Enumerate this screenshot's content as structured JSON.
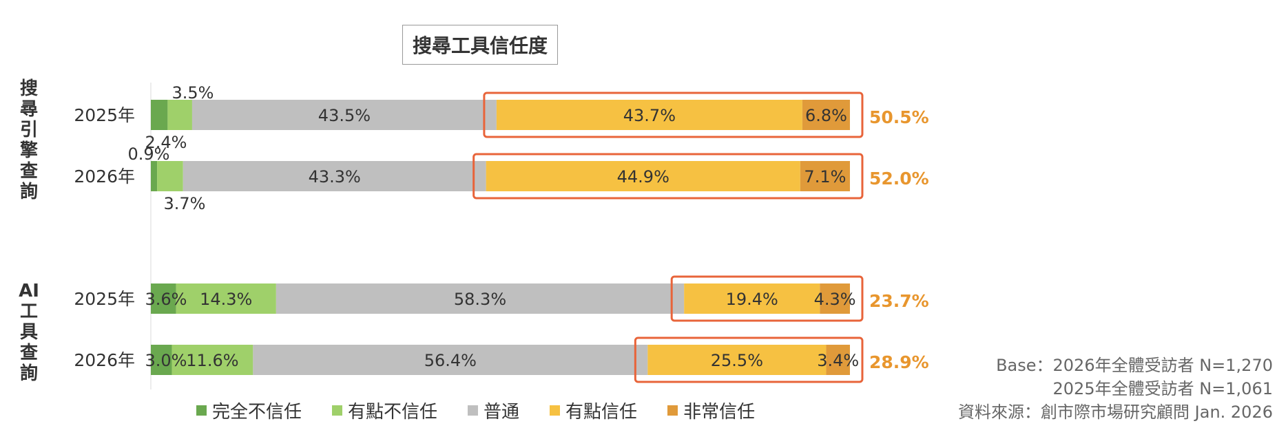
{
  "chart_data": {
    "type": "bar",
    "orientation": "horizontal",
    "stacked": true,
    "title": "搜尋工具信任度",
    "groups": [
      {
        "name_chars": [
          "搜",
          "尋",
          "引",
          "擎",
          "查",
          "詢"
        ],
        "rows": [
          {
            "label": "2025年",
            "values": [
              2.4,
              3.5,
              43.5,
              43.7,
              6.8
            ],
            "total": "50.5%"
          },
          {
            "label": "2026年",
            "values": [
              0.9,
              3.7,
              43.3,
              44.9,
              7.1
            ],
            "total": "52.0%"
          }
        ]
      },
      {
        "name_chars": [
          "AI",
          "工",
          "具",
          "查",
          "詢"
        ],
        "rows": [
          {
            "label": "2025年",
            "values": [
              3.6,
              14.3,
              58.3,
              19.4,
              4.3
            ],
            "total": "23.7%"
          },
          {
            "label": "2026年",
            "values": [
              3.0,
              11.6,
              56.4,
              25.5,
              3.4
            ],
            "total": "28.9%"
          }
        ]
      }
    ],
    "series": [
      {
        "name": "完全不信任",
        "color": "#6aa84f"
      },
      {
        "name": "有點不信任",
        "color": "#9fd06a"
      },
      {
        "name": "普通",
        "color": "#bfbfbf"
      },
      {
        "name": "有點信任",
        "color": "#f6c142"
      },
      {
        "name": "非常信任",
        "color": "#e09a3a"
      }
    ],
    "xlim": [
      0,
      100
    ],
    "legend_position": "bottom",
    "highlight_color": "#e8643a",
    "total_color": "#e8962e"
  },
  "base_note": [
    "Base：2026年全體受訪者 N=1,270",
    "2025年全體受訪者 N=1,061",
    "資料來源：創市際市場研究顧問 Jan. 2026"
  ]
}
